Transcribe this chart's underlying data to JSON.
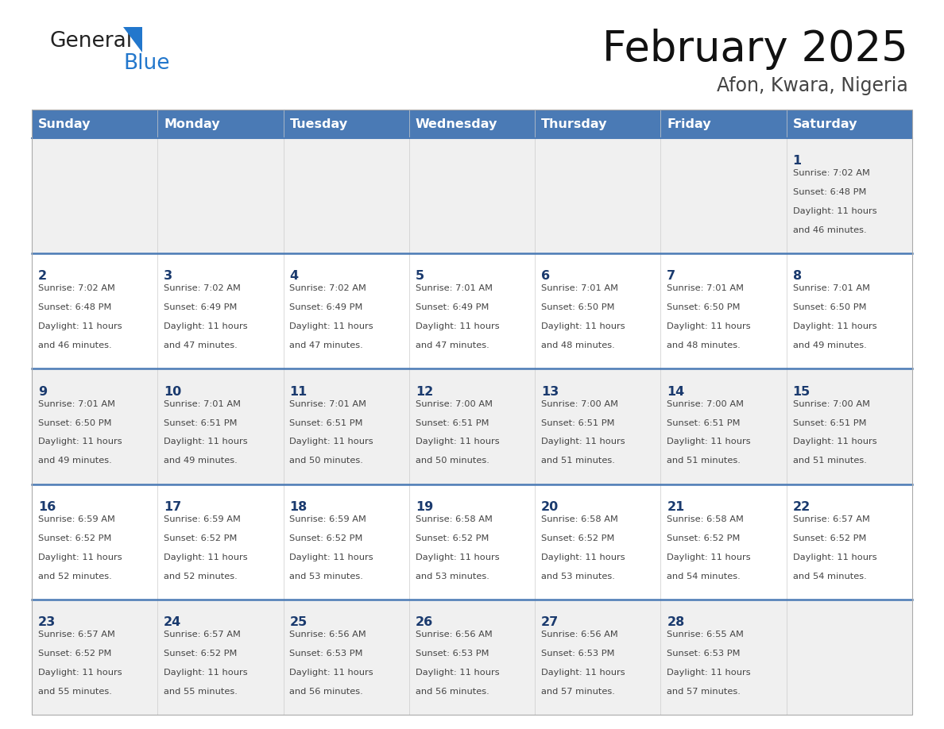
{
  "title": "February 2025",
  "subtitle": "Afon, Kwara, Nigeria",
  "header_bg": "#4a7ab5",
  "header_text_color": "#FFFFFF",
  "day_names": [
    "Sunday",
    "Monday",
    "Tuesday",
    "Wednesday",
    "Thursday",
    "Friday",
    "Saturday"
  ],
  "row_bg_even": "#f0f0f0",
  "row_bg_odd": "#FFFFFF",
  "cell_text_color": "#444444",
  "date_color": "#1a3a6e",
  "separator_color": "#4a7ab5",
  "logo_general_color": "#222222",
  "logo_blue_color": "#2277cc",
  "days": [
    {
      "date": 1,
      "col": 6,
      "row": 0,
      "sunrise": "7:02 AM",
      "sunset": "6:48 PM",
      "daylight": "11 hours and 46 minutes."
    },
    {
      "date": 2,
      "col": 0,
      "row": 1,
      "sunrise": "7:02 AM",
      "sunset": "6:48 PM",
      "daylight": "11 hours and 46 minutes."
    },
    {
      "date": 3,
      "col": 1,
      "row": 1,
      "sunrise": "7:02 AM",
      "sunset": "6:49 PM",
      "daylight": "11 hours and 47 minutes."
    },
    {
      "date": 4,
      "col": 2,
      "row": 1,
      "sunrise": "7:02 AM",
      "sunset": "6:49 PM",
      "daylight": "11 hours and 47 minutes."
    },
    {
      "date": 5,
      "col": 3,
      "row": 1,
      "sunrise": "7:01 AM",
      "sunset": "6:49 PM",
      "daylight": "11 hours and 47 minutes."
    },
    {
      "date": 6,
      "col": 4,
      "row": 1,
      "sunrise": "7:01 AM",
      "sunset": "6:50 PM",
      "daylight": "11 hours and 48 minutes."
    },
    {
      "date": 7,
      "col": 5,
      "row": 1,
      "sunrise": "7:01 AM",
      "sunset": "6:50 PM",
      "daylight": "11 hours and 48 minutes."
    },
    {
      "date": 8,
      "col": 6,
      "row": 1,
      "sunrise": "7:01 AM",
      "sunset": "6:50 PM",
      "daylight": "11 hours and 49 minutes."
    },
    {
      "date": 9,
      "col": 0,
      "row": 2,
      "sunrise": "7:01 AM",
      "sunset": "6:50 PM",
      "daylight": "11 hours and 49 minutes."
    },
    {
      "date": 10,
      "col": 1,
      "row": 2,
      "sunrise": "7:01 AM",
      "sunset": "6:51 PM",
      "daylight": "11 hours and 49 minutes."
    },
    {
      "date": 11,
      "col": 2,
      "row": 2,
      "sunrise": "7:01 AM",
      "sunset": "6:51 PM",
      "daylight": "11 hours and 50 minutes."
    },
    {
      "date": 12,
      "col": 3,
      "row": 2,
      "sunrise": "7:00 AM",
      "sunset": "6:51 PM",
      "daylight": "11 hours and 50 minutes."
    },
    {
      "date": 13,
      "col": 4,
      "row": 2,
      "sunrise": "7:00 AM",
      "sunset": "6:51 PM",
      "daylight": "11 hours and 51 minutes."
    },
    {
      "date": 14,
      "col": 5,
      "row": 2,
      "sunrise": "7:00 AM",
      "sunset": "6:51 PM",
      "daylight": "11 hours and 51 minutes."
    },
    {
      "date": 15,
      "col": 6,
      "row": 2,
      "sunrise": "7:00 AM",
      "sunset": "6:51 PM",
      "daylight": "11 hours and 51 minutes."
    },
    {
      "date": 16,
      "col": 0,
      "row": 3,
      "sunrise": "6:59 AM",
      "sunset": "6:52 PM",
      "daylight": "11 hours and 52 minutes."
    },
    {
      "date": 17,
      "col": 1,
      "row": 3,
      "sunrise": "6:59 AM",
      "sunset": "6:52 PM",
      "daylight": "11 hours and 52 minutes."
    },
    {
      "date": 18,
      "col": 2,
      "row": 3,
      "sunrise": "6:59 AM",
      "sunset": "6:52 PM",
      "daylight": "11 hours and 53 minutes."
    },
    {
      "date": 19,
      "col": 3,
      "row": 3,
      "sunrise": "6:58 AM",
      "sunset": "6:52 PM",
      "daylight": "11 hours and 53 minutes."
    },
    {
      "date": 20,
      "col": 4,
      "row": 3,
      "sunrise": "6:58 AM",
      "sunset": "6:52 PM",
      "daylight": "11 hours and 53 minutes."
    },
    {
      "date": 21,
      "col": 5,
      "row": 3,
      "sunrise": "6:58 AM",
      "sunset": "6:52 PM",
      "daylight": "11 hours and 54 minutes."
    },
    {
      "date": 22,
      "col": 6,
      "row": 3,
      "sunrise": "6:57 AM",
      "sunset": "6:52 PM",
      "daylight": "11 hours and 54 minutes."
    },
    {
      "date": 23,
      "col": 0,
      "row": 4,
      "sunrise": "6:57 AM",
      "sunset": "6:52 PM",
      "daylight": "11 hours and 55 minutes."
    },
    {
      "date": 24,
      "col": 1,
      "row": 4,
      "sunrise": "6:57 AM",
      "sunset": "6:52 PM",
      "daylight": "11 hours and 55 minutes."
    },
    {
      "date": 25,
      "col": 2,
      "row": 4,
      "sunrise": "6:56 AM",
      "sunset": "6:53 PM",
      "daylight": "11 hours and 56 minutes."
    },
    {
      "date": 26,
      "col": 3,
      "row": 4,
      "sunrise": "6:56 AM",
      "sunset": "6:53 PM",
      "daylight": "11 hours and 56 minutes."
    },
    {
      "date": 27,
      "col": 4,
      "row": 4,
      "sunrise": "6:56 AM",
      "sunset": "6:53 PM",
      "daylight": "11 hours and 57 minutes."
    },
    {
      "date": 28,
      "col": 5,
      "row": 4,
      "sunrise": "6:55 AM",
      "sunset": "6:53 PM",
      "daylight": "11 hours and 57 minutes."
    }
  ]
}
